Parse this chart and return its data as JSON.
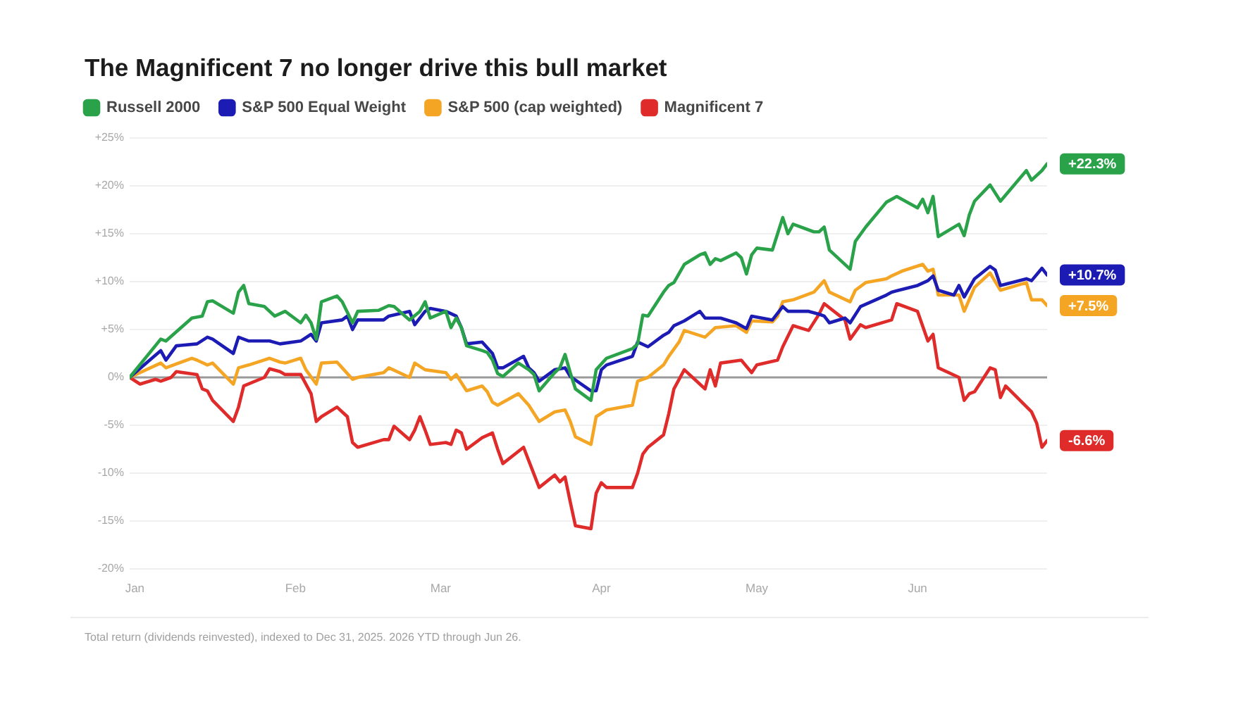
{
  "chart_data": {
    "type": "line",
    "title": "The Magnificent 7 no longer drive this bull market",
    "annotations": [
      "Total return (dividends reinvested), indexed to Dec 31, 2025. 2026 YTD through Jun 26."
    ],
    "xlim": [
      "2025-12-31",
      "2026-06-26"
    ],
    "xticks": [
      {
        "value": "2026-01",
        "label": "Jan"
      },
      {
        "value": "2026-02",
        "label": "Feb"
      },
      {
        "value": "2026-03",
        "label": "Mar"
      },
      {
        "value": "2026-04",
        "label": "Apr"
      },
      {
        "value": "2026-05",
        "label": "May"
      },
      {
        "value": "2026-06",
        "label": "Jun"
      }
    ],
    "ylim": [
      -20,
      25
    ],
    "yticks": [
      {
        "value": -20,
        "label": "-20%"
      },
      {
        "value": -15,
        "label": "-15%"
      },
      {
        "value": -10,
        "label": "-10%"
      },
      {
        "value": -5,
        "label": "-5%"
      },
      {
        "value": 0,
        "label": "0%"
      },
      {
        "value": 5,
        "label": "+5%"
      },
      {
        "value": 10,
        "label": "+10%"
      },
      {
        "value": 15,
        "label": "+15%"
      },
      {
        "value": 20,
        "label": "+20%"
      },
      {
        "value": 25,
        "label": "+25%"
      }
    ],
    "grid": "y",
    "legend": "top left",
    "ref_lines": [
      {
        "axis": "y",
        "value": 0,
        "color": "#999999"
      }
    ],
    "series": [
      {
        "name": "Russell 2000",
        "color": "#2aa24a",
        "x": [
          "2025-12-31",
          "2026-01-06",
          "2026-01-07",
          "2026-01-12",
          "2026-01-14",
          "2026-01-15",
          "2026-01-16",
          "2026-01-20",
          "2026-01-21",
          "2026-01-22",
          "2026-01-23",
          "2026-01-26",
          "2026-01-28",
          "2026-01-30",
          "2026-02-02",
          "2026-02-03",
          "2026-02-04",
          "2026-02-05",
          "2026-02-06",
          "2026-02-09",
          "2026-02-10",
          "2026-02-12",
          "2026-02-13",
          "2026-02-17",
          "2026-02-19",
          "2026-02-20",
          "2026-02-23",
          "2026-02-25",
          "2026-02-26",
          "2026-02-27",
          "2026-03-02",
          "2026-03-03",
          "2026-03-04",
          "2026-03-05",
          "2026-03-06",
          "2026-03-09",
          "2026-03-10",
          "2026-03-11",
          "2026-03-12",
          "2026-03-13",
          "2026-03-16",
          "2026-03-18",
          "2026-03-19",
          "2026-03-20",
          "2026-03-23",
          "2026-03-24",
          "2026-03-25",
          "2026-03-26",
          "2026-03-27",
          "2026-03-30",
          "2026-03-31",
          "2026-04-02",
          "2026-04-07",
          "2026-04-08",
          "2026-04-09",
          "2026-04-10",
          "2026-04-13",
          "2026-04-14",
          "2026-04-15",
          "2026-04-17",
          "2026-04-20",
          "2026-04-21",
          "2026-04-22",
          "2026-04-23",
          "2026-04-24",
          "2026-04-27",
          "2026-04-28",
          "2026-04-29",
          "2026-04-30",
          "2026-05-01",
          "2026-05-04",
          "2026-05-05",
          "2026-05-06",
          "2026-05-07",
          "2026-05-08",
          "2026-05-12",
          "2026-05-13",
          "2026-05-14",
          "2026-05-15",
          "2026-05-19",
          "2026-05-20",
          "2026-05-22",
          "2026-05-26",
          "2026-05-28",
          "2026-06-01",
          "2026-06-02",
          "2026-06-03",
          "2026-06-04",
          "2026-06-05",
          "2026-06-09",
          "2026-06-10",
          "2026-06-11",
          "2026-06-12",
          "2026-06-15",
          "2026-06-17",
          "2026-06-22",
          "2026-06-23",
          "2026-06-25",
          "2026-06-26"
        ],
        "values": [
          0,
          4.0,
          3.8,
          6.2,
          6.4,
          7.9,
          8.0,
          6.7,
          8.9,
          9.6,
          7.7,
          7.4,
          6.4,
          6.9,
          5.7,
          6.5,
          5.7,
          4.0,
          7.9,
          8.5,
          7.9,
          5.7,
          6.9,
          7.0,
          7.5,
          7.4,
          6.0,
          6.9,
          7.9,
          6.2,
          6.9,
          5.2,
          6.2,
          5.2,
          3.3,
          2.8,
          2.6,
          1.8,
          0.4,
          0.1,
          1.5,
          0.8,
          0.3,
          -1.4,
          0.5,
          1.0,
          2.4,
          0.5,
          -1.2,
          -2.4,
          0.8,
          2.0,
          3.0,
          3.5,
          6.5,
          6.4,
          8.9,
          9.6,
          9.9,
          11.8,
          12.8,
          13.0,
          11.8,
          12.4,
          12.2,
          13.0,
          12.5,
          10.8,
          12.8,
          13.5,
          13.3,
          15.0,
          16.7,
          15.0,
          16.0,
          15.2,
          15.2,
          15.7,
          13.3,
          11.3,
          14.2,
          15.7,
          18.3,
          18.9,
          17.7,
          18.6,
          17.2,
          18.9,
          14.7,
          16.0,
          14.8,
          17.0,
          18.4,
          20.1,
          18.4,
          21.6,
          20.6,
          21.6,
          22.3
        ],
        "value_labels": [
          null,
          null,
          null,
          null,
          null,
          null,
          null,
          null,
          null,
          null,
          null,
          null,
          null,
          null,
          null,
          null,
          null,
          null,
          null,
          null,
          null,
          null,
          null,
          null,
          null,
          null,
          null,
          null,
          null,
          null,
          null,
          null,
          null,
          null,
          null,
          null,
          null,
          null,
          null,
          null,
          null,
          null,
          null,
          null,
          null,
          null,
          null,
          null,
          null,
          null,
          null,
          null,
          null,
          null,
          null,
          null,
          null,
          null,
          null,
          null,
          null,
          null,
          null,
          null,
          null,
          null,
          null,
          null,
          null,
          null,
          null,
          null,
          null,
          null,
          null,
          null,
          null,
          null,
          null,
          null,
          null,
          null,
          null,
          null,
          null,
          null,
          null,
          null,
          null,
          null,
          null,
          null,
          null,
          null,
          null,
          null,
          null,
          null,
          "+22.3%"
        ]
      },
      {
        "name": "S&P 500 Equal Weight",
        "color": "#1c1cb4",
        "x": [
          "2025-12-31",
          "2026-01-06",
          "2026-01-07",
          "2026-01-09",
          "2026-01-13",
          "2026-01-15",
          "2026-01-16",
          "2026-01-20",
          "2026-01-21",
          "2026-01-23",
          "2026-01-27",
          "2026-01-29",
          "2026-02-02",
          "2026-02-04",
          "2026-02-05",
          "2026-02-06",
          "2026-02-10",
          "2026-02-11",
          "2026-02-12",
          "2026-02-13",
          "2026-02-18",
          "2026-02-19",
          "2026-02-23",
          "2026-02-24",
          "2026-02-25",
          "2026-02-26",
          "2026-02-27",
          "2026-03-02",
          "2026-03-04",
          "2026-03-05",
          "2026-03-06",
          "2026-03-09",
          "2026-03-11",
          "2026-03-12",
          "2026-03-13",
          "2026-03-17",
          "2026-03-18",
          "2026-03-19",
          "2026-03-20",
          "2026-03-23",
          "2026-03-25",
          "2026-03-26",
          "2026-03-30",
          "2026-03-31",
          "2026-04-01",
          "2026-04-02",
          "2026-04-07",
          "2026-04-08",
          "2026-04-10",
          "2026-04-13",
          "2026-04-14",
          "2026-04-15",
          "2026-04-17",
          "2026-04-20",
          "2026-04-21",
          "2026-04-24",
          "2026-04-27",
          "2026-04-29",
          "2026-04-30",
          "2026-05-04",
          "2026-05-06",
          "2026-05-07",
          "2026-05-11",
          "2026-05-13",
          "2026-05-14",
          "2026-05-15",
          "2026-05-18",
          "2026-05-19",
          "2026-05-21",
          "2026-05-26",
          "2026-05-27",
          "2026-06-01",
          "2026-06-03",
          "2026-06-04",
          "2026-06-05",
          "2026-06-08",
          "2026-06-09",
          "2026-06-10",
          "2026-06-12",
          "2026-06-15",
          "2026-06-16",
          "2026-06-17",
          "2026-06-22",
          "2026-06-23",
          "2026-06-25",
          "2026-06-26"
        ],
        "values": [
          0,
          2.8,
          1.8,
          3.3,
          3.5,
          4.2,
          4.0,
          2.5,
          4.2,
          3.8,
          3.8,
          3.5,
          3.8,
          4.5,
          3.8,
          5.7,
          6.0,
          6.4,
          5.0,
          6.0,
          6.0,
          6.4,
          6.9,
          5.5,
          6.2,
          6.9,
          7.2,
          6.9,
          6.4,
          5.2,
          3.5,
          3.7,
          2.5,
          1.0,
          1.0,
          2.2,
          1.0,
          0.5,
          -0.4,
          0.8,
          1.0,
          0.1,
          -1.4,
          -1.4,
          0.8,
          1.3,
          2.2,
          3.7,
          3.2,
          4.4,
          4.7,
          5.4,
          5.9,
          6.9,
          6.2,
          6.2,
          5.7,
          5.1,
          6.4,
          6.0,
          7.4,
          6.9,
          6.9,
          6.6,
          6.4,
          5.7,
          6.2,
          5.7,
          7.4,
          8.6,
          8.9,
          9.6,
          10.1,
          10.6,
          9.1,
          8.6,
          9.6,
          8.4,
          10.3,
          11.6,
          11.2,
          9.6,
          10.3,
          10.1,
          11.4,
          10.7
        ],
        "value_labels": [
          null,
          null,
          null,
          null,
          null,
          null,
          null,
          null,
          null,
          null,
          null,
          null,
          null,
          null,
          null,
          null,
          null,
          null,
          null,
          null,
          null,
          null,
          null,
          null,
          null,
          null,
          null,
          null,
          null,
          null,
          null,
          null,
          null,
          null,
          null,
          null,
          null,
          null,
          null,
          null,
          null,
          null,
          null,
          null,
          null,
          null,
          null,
          null,
          null,
          null,
          null,
          null,
          null,
          null,
          null,
          null,
          null,
          null,
          null,
          null,
          null,
          null,
          null,
          null,
          null,
          null,
          null,
          null,
          null,
          null,
          null,
          null,
          null,
          null,
          null,
          null,
          null,
          null,
          null,
          null,
          null,
          null,
          null,
          null,
          null,
          "+10.7%"
        ]
      },
      {
        "name": "S&P 500 (cap weighted)",
        "color": "#f5a524",
        "x": [
          "2025-12-31",
          "2026-01-06",
          "2026-01-07",
          "2026-01-12",
          "2026-01-13",
          "2026-01-15",
          "2026-01-16",
          "2026-01-20",
          "2026-01-21",
          "2026-01-23",
          "2026-01-27",
          "2026-01-29",
          "2026-01-30",
          "2026-02-02",
          "2026-02-03",
          "2026-02-05",
          "2026-02-06",
          "2026-02-09",
          "2026-02-10",
          "2026-02-12",
          "2026-02-13",
          "2026-02-18",
          "2026-02-19",
          "2026-02-23",
          "2026-02-24",
          "2026-02-26",
          "2026-03-02",
          "2026-03-03",
          "2026-03-04",
          "2026-03-06",
          "2026-03-09",
          "2026-03-10",
          "2026-03-11",
          "2026-03-12",
          "2026-03-16",
          "2026-03-18",
          "2026-03-20",
          "2026-03-23",
          "2026-03-25",
          "2026-03-26",
          "2026-03-27",
          "2026-03-30",
          "2026-03-31",
          "2026-04-02",
          "2026-04-07",
          "2026-04-08",
          "2026-04-10",
          "2026-04-13",
          "2026-04-14",
          "2026-04-16",
          "2026-04-17",
          "2026-04-21",
          "2026-04-22",
          "2026-04-23",
          "2026-04-27",
          "2026-04-29",
          "2026-04-30",
          "2026-05-04",
          "2026-05-05",
          "2026-05-06",
          "2026-05-08",
          "2026-05-12",
          "2026-05-14",
          "2026-05-15",
          "2026-05-19",
          "2026-05-20",
          "2026-05-22",
          "2026-05-26",
          "2026-05-27",
          "2026-05-29",
          "2026-06-02",
          "2026-06-03",
          "2026-06-04",
          "2026-06-05",
          "2026-06-09",
          "2026-06-10",
          "2026-06-12",
          "2026-06-15",
          "2026-06-17",
          "2026-06-22",
          "2026-06-23",
          "2026-06-25",
          "2026-06-26"
        ],
        "values": [
          0,
          1.5,
          1.0,
          2.0,
          1.8,
          1.3,
          1.5,
          -0.7,
          1.0,
          1.3,
          2.0,
          1.6,
          1.5,
          2.0,
          0.8,
          -0.7,
          1.5,
          1.6,
          1.0,
          -0.2,
          0.0,
          0.5,
          1.0,
          0.0,
          1.5,
          0.8,
          0.5,
          -0.2,
          0.3,
          -1.4,
          -0.9,
          -1.5,
          -2.6,
          -2.9,
          -1.7,
          -2.9,
          -4.6,
          -3.6,
          -3.4,
          -4.6,
          -6.2,
          -7.0,
          -4.1,
          -3.4,
          -2.9,
          -0.4,
          0.0,
          1.3,
          2.2,
          3.7,
          4.9,
          4.2,
          4.7,
          5.2,
          5.4,
          4.7,
          5.9,
          5.8,
          6.4,
          7.9,
          8.1,
          8.9,
          10.1,
          8.9,
          7.9,
          9.1,
          9.9,
          10.3,
          10.6,
          11.1,
          11.8,
          11.1,
          11.3,
          8.6,
          8.6,
          6.9,
          9.4,
          10.9,
          9.1,
          9.9,
          8.1,
          8.1,
          7.5
        ],
        "value_labels": [
          null,
          null,
          null,
          null,
          null,
          null,
          null,
          null,
          null,
          null,
          null,
          null,
          null,
          null,
          null,
          null,
          null,
          null,
          null,
          null,
          null,
          null,
          null,
          null,
          null,
          null,
          null,
          null,
          null,
          null,
          null,
          null,
          null,
          null,
          null,
          null,
          null,
          null,
          null,
          null,
          null,
          null,
          null,
          null,
          null,
          null,
          null,
          null,
          null,
          null,
          null,
          null,
          null,
          null,
          null,
          null,
          null,
          null,
          null,
          null,
          null,
          null,
          null,
          null,
          null,
          null,
          null,
          null,
          null,
          null,
          null,
          null,
          null,
          null,
          null,
          null,
          null,
          null,
          null,
          null,
          null,
          null,
          "+7.5%"
        ]
      },
      {
        "name": "Magnificent 7",
        "color": "#e02b2b",
        "x": [
          "2025-12-31",
          "2026-01-02",
          "2026-01-05",
          "2026-01-06",
          "2026-01-07",
          "2026-01-08",
          "2026-01-09",
          "2026-01-13",
          "2026-01-14",
          "2026-01-15",
          "2026-01-16",
          "2026-01-20",
          "2026-01-21",
          "2026-01-22",
          "2026-01-26",
          "2026-01-27",
          "2026-01-29",
          "2026-01-30",
          "2026-02-02",
          "2026-02-04",
          "2026-02-05",
          "2026-02-06",
          "2026-02-09",
          "2026-02-10",
          "2026-02-11",
          "2026-02-12",
          "2026-02-13",
          "2026-02-18",
          "2026-02-19",
          "2026-02-20",
          "2026-02-23",
          "2026-02-24",
          "2026-02-25",
          "2026-02-26",
          "2026-02-27",
          "2026-03-02",
          "2026-03-03",
          "2026-03-04",
          "2026-03-05",
          "2026-03-06",
          "2026-03-09",
          "2026-03-11",
          "2026-03-12",
          "2026-03-13",
          "2026-03-17",
          "2026-03-18",
          "2026-03-20",
          "2026-03-23",
          "2026-03-24",
          "2026-03-25",
          "2026-03-26",
          "2026-03-27",
          "2026-03-30",
          "2026-03-31",
          "2026-04-01",
          "2026-04-02",
          "2026-04-07",
          "2026-04-08",
          "2026-04-09",
          "2026-04-10",
          "2026-04-13",
          "2026-04-14",
          "2026-04-15",
          "2026-04-17",
          "2026-04-20",
          "2026-04-21",
          "2026-04-22",
          "2026-04-23",
          "2026-04-24",
          "2026-04-28",
          "2026-04-30",
          "2026-05-01",
          "2026-05-05",
          "2026-05-06",
          "2026-05-08",
          "2026-05-11",
          "2026-05-13",
          "2026-05-14",
          "2026-05-18",
          "2026-05-19",
          "2026-05-21",
          "2026-05-22",
          "2026-05-27",
          "2026-05-28",
          "2026-06-01",
          "2026-06-03",
          "2026-06-04",
          "2026-06-05",
          "2026-06-09",
          "2026-06-10",
          "2026-06-11",
          "2026-06-12",
          "2026-06-15",
          "2026-06-16",
          "2026-06-17",
          "2026-06-18",
          "2026-06-23",
          "2026-06-24",
          "2026-06-25",
          "2026-06-26"
        ],
        "values": [
          0,
          -0.7,
          -0.2,
          -0.4,
          -0.2,
          0.0,
          0.6,
          0.3,
          -1.2,
          -1.4,
          -2.4,
          -4.6,
          -3.1,
          -0.9,
          0.0,
          0.9,
          0.6,
          0.3,
          0.3,
          -1.7,
          -4.6,
          -4.1,
          -3.1,
          -3.6,
          -4.1,
          -6.8,
          -7.3,
          -6.5,
          -6.5,
          -5.1,
          -6.5,
          -5.5,
          -4.1,
          -5.5,
          -7.0,
          -6.8,
          -7.0,
          -5.5,
          -5.8,
          -7.5,
          -6.3,
          -5.8,
          -7.5,
          -9.0,
          -7.3,
          -8.7,
          -11.5,
          -10.2,
          -10.9,
          -10.4,
          -13.0,
          -15.5,
          -15.8,
          -12.1,
          -11.0,
          -11.5,
          -11.5,
          -10.0,
          -8.0,
          -7.3,
          -6.0,
          -3.8,
          -1.2,
          0.8,
          -0.7,
          -1.2,
          0.8,
          -0.9,
          1.5,
          1.8,
          0.5,
          1.3,
          1.8,
          3.2,
          5.4,
          4.9,
          6.6,
          7.7,
          6.0,
          4.0,
          5.5,
          5.2,
          6.0,
          7.7,
          6.9,
          3.8,
          4.5,
          1.0,
          0.0,
          -2.4,
          -1.7,
          -1.5,
          1.0,
          0.8,
          -2.1,
          -0.9,
          -3.6,
          -4.8,
          -7.3,
          -6.6
        ],
        "value_labels": [
          null,
          null,
          null,
          null,
          null,
          null,
          null,
          null,
          null,
          null,
          null,
          null,
          null,
          null,
          null,
          null,
          null,
          null,
          null,
          null,
          null,
          null,
          null,
          null,
          null,
          null,
          null,
          null,
          null,
          null,
          null,
          null,
          null,
          null,
          null,
          null,
          null,
          null,
          null,
          null,
          null,
          null,
          null,
          null,
          null,
          null,
          null,
          null,
          null,
          null,
          null,
          null,
          null,
          null,
          null,
          null,
          null,
          null,
          null,
          null,
          null,
          null,
          null,
          null,
          null,
          null,
          null,
          null,
          null,
          null,
          null,
          null,
          null,
          null,
          null,
          null,
          null,
          null,
          null,
          null,
          null,
          null,
          null,
          null,
          null,
          null,
          null,
          null,
          null,
          null,
          null,
          null,
          null,
          null,
          null,
          null,
          null,
          null,
          null,
          "-6.6%"
        ]
      }
    ]
  }
}
